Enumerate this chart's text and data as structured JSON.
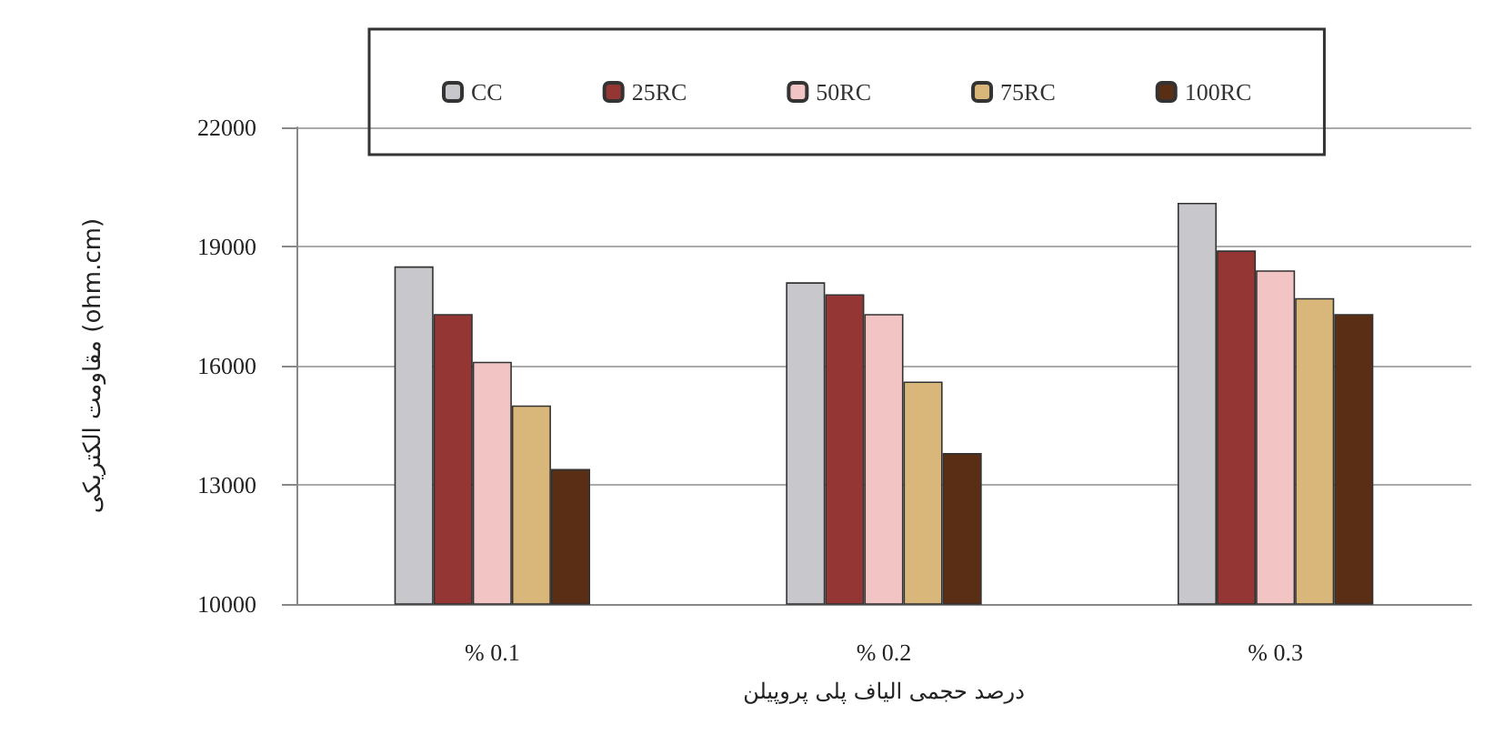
{
  "chart_data": {
    "type": "bar",
    "xlabel": "درصد حجمی الیاف پلی پروپیلن",
    "ylabel": "مقاومت الکتریکی (ohm.cm)",
    "categories": [
      "% 0.1",
      "% 0.2",
      "% 0.3"
    ],
    "series": [
      {
        "name": "CC",
        "color": "#c8c8cc",
        "values": [
          18500,
          18100,
          20100
        ]
      },
      {
        "name": "25RC",
        "color": "#943634",
        "values": [
          17300,
          17800,
          18900
        ]
      },
      {
        "name": "50RC",
        "color": "#f2c4c4",
        "values": [
          16100,
          17300,
          18400
        ]
      },
      {
        "name": "75RC",
        "color": "#d9b77a",
        "values": [
          15000,
          15600,
          17700
        ]
      },
      {
        "name": "100RC",
        "color": "#5a2e14",
        "values": [
          13400,
          13800,
          17300
        ]
      }
    ],
    "ylim": [
      10000,
      22000
    ],
    "yticks": [
      10000,
      13000,
      16000,
      19000,
      22000
    ],
    "grid": "y",
    "legend": "top"
  }
}
